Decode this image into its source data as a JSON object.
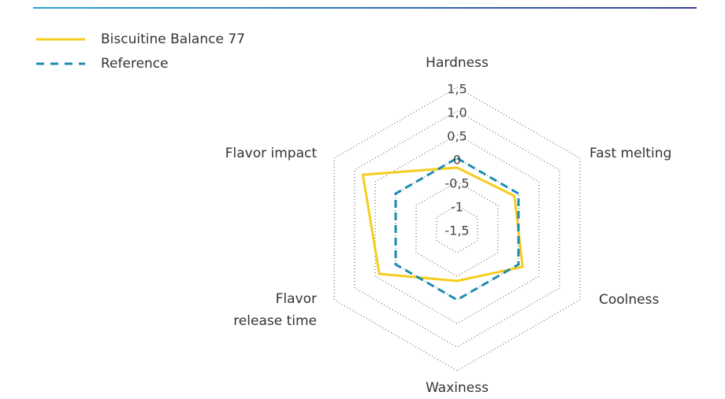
{
  "chart_data": {
    "type": "radar",
    "categories": [
      "Hardness",
      "Fast melting",
      "Coolness",
      "Waxiness",
      "Flavor release time",
      "Flavor impact"
    ],
    "series": [
      {
        "name": "Biscuitine Balance 77",
        "color": "#f5cd1c",
        "values": [
          -0.2,
          -0.1,
          0.1,
          -0.4,
          0.4,
          0.8
        ]
      },
      {
        "name": "Reference",
        "color": "#1a8bb0",
        "values": [
          0,
          0,
          0,
          0,
          0,
          0
        ]
      }
    ],
    "ylim": [
      -1.5,
      1.5
    ],
    "yticks": [
      {
        "value": -1.5,
        "label": "-1,5"
      },
      -1,
      {
        "value": -0.5,
        "label": "-0,5"
      },
      0,
      {
        "value": 0.5,
        "label": "0,5"
      },
      {
        "value": 1.0,
        "label": "1,0"
      },
      {
        "value": 1.5,
        "label": "1,5"
      }
    ],
    "grid": true
  }
}
